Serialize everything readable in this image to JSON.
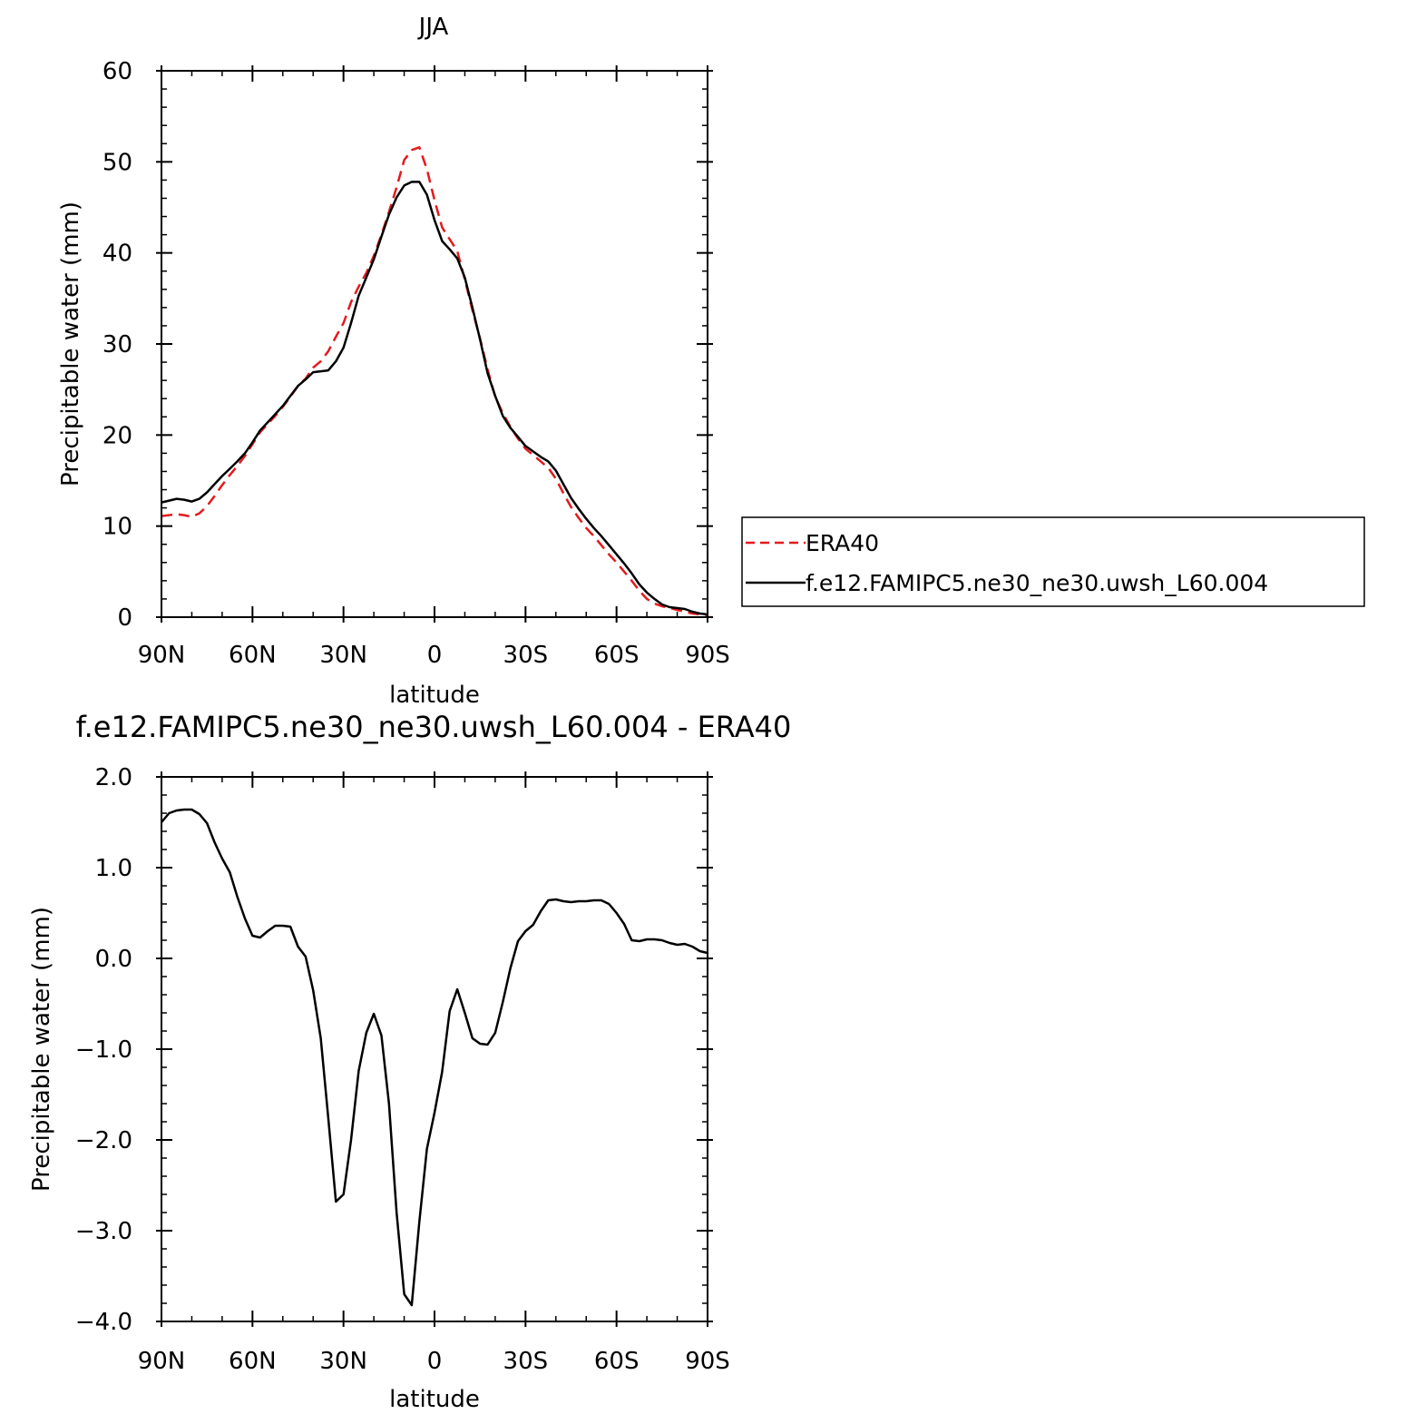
{
  "chart_data": [
    {
      "type": "line",
      "title": "JJA",
      "xlabel": "latitude",
      "ylabel": "Precipitable water (mm)",
      "xlim": [
        90,
        -90
      ],
      "ylim": [
        0,
        60
      ],
      "x_ticks": [
        90,
        60,
        30,
        0,
        -30,
        -60,
        -90
      ],
      "x_tick_labels": [
        "90N",
        "60N",
        "30N",
        "0",
        "30S",
        "60S",
        "90S"
      ],
      "y_ticks": [
        0,
        10,
        20,
        30,
        40,
        50,
        60
      ],
      "y_tick_labels": [
        "0",
        "10",
        "20",
        "30",
        "40",
        "50",
        "60"
      ],
      "legend_position": "right",
      "series": [
        {
          "name": "ERA40",
          "color": "#e41a1c",
          "dash": "dashed",
          "x": [
            90,
            87.5,
            85,
            82.5,
            80,
            77.5,
            75,
            72.5,
            70,
            67.5,
            65,
            62.5,
            60,
            57.5,
            55,
            52.5,
            50,
            47.5,
            45,
            42.5,
            40,
            37.5,
            35,
            32.5,
            30,
            27.5,
            25,
            22.5,
            20,
            17.5,
            15,
            12.5,
            10,
            7.5,
            5,
            2.5,
            0,
            -2.5,
            -5,
            -7.5,
            -10,
            -12.5,
            -15,
            -17.5,
            -20,
            -22.5,
            -25,
            -27.5,
            -30,
            -32.5,
            -35,
            -37.5,
            -40,
            -42.5,
            -45,
            -47.5,
            -50,
            -52.5,
            -55,
            -57.5,
            -60,
            -62.5,
            -65,
            -67.5,
            -70,
            -72.5,
            -75,
            -77.5,
            -80,
            -82.5,
            -85,
            -87.5,
            -90
          ],
          "values": [
            11.1,
            11.2,
            11.3,
            11.2,
            11.0,
            11.4,
            12.2,
            13.3,
            14.5,
            15.6,
            16.6,
            17.7,
            19.0,
            20.3,
            21.2,
            22.1,
            23.1,
            24.2,
            25.4,
            26.2,
            27.4,
            28.1,
            29.2,
            30.8,
            32.3,
            34.6,
            36.3,
            37.8,
            39.7,
            42.0,
            44.5,
            47.2,
            50.2,
            51.3,
            51.6,
            49.2,
            45.8,
            42.8,
            41.5,
            40.2,
            37.1,
            33.7,
            30.6,
            27.2,
            24.2,
            22.4,
            20.9,
            19.6,
            18.5,
            17.8,
            17.1,
            16.4,
            15.2,
            13.6,
            12.1,
            10.9,
            9.8,
            8.9,
            7.9,
            6.9,
            6.0,
            5.0,
            4.0,
            2.9,
            2.0,
            1.5,
            1.2,
            1.0,
            0.8,
            0.6,
            0.4,
            0.3,
            0.2
          ]
        },
        {
          "name": "f.e12.FAMIPC5.ne30_ne30.uwsh_L60.004",
          "color": "#000000",
          "dash": "solid",
          "x": [
            90,
            87.5,
            85,
            82.5,
            80,
            77.5,
            75,
            72.5,
            70,
            67.5,
            65,
            62.5,
            60,
            57.5,
            55,
            52.5,
            50,
            47.5,
            45,
            42.5,
            40,
            37.5,
            35,
            32.5,
            30,
            27.5,
            25,
            22.5,
            20,
            17.5,
            15,
            12.5,
            10,
            7.5,
            5,
            2.5,
            0,
            -2.5,
            -5,
            -7.5,
            -10,
            -12.5,
            -15,
            -17.5,
            -20,
            -22.5,
            -25,
            -27.5,
            -30,
            -32.5,
            -35,
            -37.5,
            -40,
            -42.5,
            -45,
            -47.5,
            -50,
            -52.5,
            -55,
            -57.5,
            -60,
            -62.5,
            -65,
            -67.5,
            -70,
            -72.5,
            -75,
            -77.5,
            -80,
            -82.5,
            -85,
            -87.5,
            -90
          ],
          "values": [
            12.6,
            12.8,
            13.0,
            12.9,
            12.7,
            13.0,
            13.7,
            14.6,
            15.5,
            16.3,
            17.1,
            18.0,
            19.2,
            20.5,
            21.4,
            22.3,
            23.2,
            24.3,
            25.4,
            26.1,
            26.9,
            27.0,
            27.1,
            28.1,
            29.6,
            32.3,
            35.3,
            37.3,
            39.3,
            41.8,
            44.2,
            46.1,
            47.4,
            47.8,
            47.8,
            46.4,
            43.6,
            41.3,
            40.4,
            39.4,
            37.3,
            34.0,
            30.5,
            26.8,
            24.3,
            22.1,
            20.8,
            19.8,
            18.8,
            18.2,
            17.6,
            17.1,
            16.1,
            14.6,
            13.1,
            11.9,
            10.8,
            9.8,
            8.9,
            7.9,
            6.9,
            5.9,
            4.8,
            3.6,
            2.7,
            2.0,
            1.4,
            1.1,
            1.0,
            0.9,
            0.6,
            0.4,
            0.3
          ]
        }
      ]
    },
    {
      "type": "line",
      "title": "f.e12.FAMIPC5.ne30_ne30.uwsh_L60.004 - ERA40",
      "xlabel": "latitude",
      "ylabel": "Precipitable water (mm)",
      "xlim": [
        90,
        -90
      ],
      "ylim": [
        -4.0,
        2.0
      ],
      "x_ticks": [
        90,
        60,
        30,
        0,
        -30,
        -60,
        -90
      ],
      "x_tick_labels": [
        "90N",
        "60N",
        "30N",
        "0",
        "30S",
        "60S",
        "90S"
      ],
      "y_ticks": [
        -4.0,
        -3.0,
        -2.0,
        -1.0,
        0.0,
        1.0,
        2.0
      ],
      "y_tick_labels": [
        "−4.0",
        "−3.0",
        "−2.0",
        "−1.0",
        "0.0",
        "1.0",
        "2.0"
      ],
      "series": [
        {
          "color": "#000000",
          "dash": "solid",
          "x": [
            90,
            87.5,
            85,
            82.5,
            80,
            77.5,
            75,
            72.5,
            70,
            67.5,
            65,
            62.5,
            60,
            57.5,
            55,
            52.5,
            50,
            47.5,
            45,
            42.5,
            40,
            37.5,
            35,
            32.5,
            30,
            27.5,
            25,
            22.5,
            20,
            17.5,
            15,
            12.5,
            10,
            7.5,
            5,
            2.5,
            0,
            -2.5,
            -5,
            -7.5,
            -10,
            -12.5,
            -15,
            -17.5,
            -20,
            -22.5,
            -25,
            -27.5,
            -30,
            -32.5,
            -35,
            -37.5,
            -40,
            -42.5,
            -45,
            -47.5,
            -50,
            -52.5,
            -55,
            -57.5,
            -60,
            -62.5,
            -65,
            -67.5,
            -70,
            -72.5,
            -75,
            -77.5,
            -80,
            -82.5,
            -85,
            -87.5,
            -90
          ],
          "values": [
            1.5,
            1.6,
            1.63,
            1.64,
            1.64,
            1.59,
            1.49,
            1.28,
            1.1,
            0.95,
            0.68,
            0.44,
            0.25,
            0.23,
            0.3,
            0.36,
            0.36,
            0.35,
            0.13,
            0.02,
            -0.35,
            -0.88,
            -1.76,
            -2.68,
            -2.6,
            -2.0,
            -1.24,
            -0.82,
            -0.61,
            -0.85,
            -1.6,
            -2.8,
            -3.7,
            -3.82,
            -2.9,
            -2.1,
            -1.7,
            -1.25,
            -0.58,
            -0.34,
            -0.6,
            -0.88,
            -0.94,
            -0.95,
            -0.82,
            -0.48,
            -0.11,
            0.19,
            0.3,
            0.37,
            0.52,
            0.64,
            0.65,
            0.63,
            0.62,
            0.63,
            0.63,
            0.64,
            0.64,
            0.6,
            0.5,
            0.38,
            0.2,
            0.19,
            0.21,
            0.21,
            0.2,
            0.17,
            0.15,
            0.16,
            0.13,
            0.08,
            0.06
          ]
        }
      ]
    }
  ]
}
